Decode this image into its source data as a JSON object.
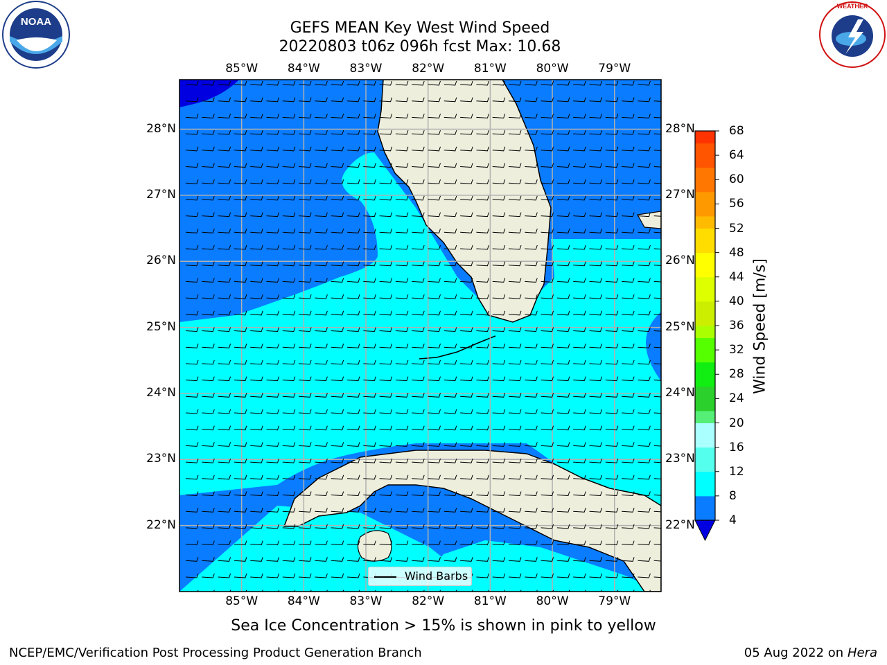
{
  "title": {
    "line1": "GEFS MEAN Key West Wind Speed",
    "line2": "20220803 t06z 096h fcst   Max: 10.68"
  },
  "axes": {
    "lon_labels": [
      "85°W",
      "84°W",
      "83°W",
      "82°W",
      "81°W",
      "80°W",
      "79°W"
    ],
    "lat_labels": [
      "28°N",
      "27°N",
      "26°N",
      "25°N",
      "24°N",
      "23°N",
      "22°N"
    ],
    "lon_range": [
      -86.0,
      -78.25
    ],
    "lat_range": [
      21.0,
      28.75
    ],
    "gridlines": true
  },
  "colorbar": {
    "label": "Wind Speed [m/s]",
    "ticks": [
      "68",
      "64",
      "60",
      "56",
      "52",
      "48",
      "44",
      "40",
      "36",
      "32",
      "28",
      "24",
      "20",
      "16",
      "12",
      "8",
      "4"
    ],
    "colors": [
      "#0000e0",
      "#0a7cff",
      "#00ffff",
      "#55ffee",
      "#aaffff",
      "#55ee77",
      "#2cd02c",
      "#11ee11",
      "#55ff00",
      "#aaff00",
      "#ccee00",
      "#ddff00",
      "#ffff00",
      "#ffdd00",
      "#ffbb00",
      "#ff9900",
      "#ff7700",
      "#ff5500",
      "#ff3300",
      "#ff0000"
    ],
    "extend": "min"
  },
  "colors": {
    "land": "#eeeedd",
    "slow": "#0a7cff",
    "fast": "#00ffff",
    "darkest": "#0000e0",
    "grid": "#b0b0b0"
  },
  "legend": {
    "label": "Wind Barbs"
  },
  "caption": "Sea Ice Concentration > 15% is shown in pink to yellow",
  "footer": {
    "left": "NCEP/EMC/Verification Post Processing Product Generation Branch",
    "right_date": "05 Aug 2022 on",
    "right_host": "Hera"
  },
  "logos": {
    "left": {
      "name": "noaa-logo",
      "text": "NOAA",
      "ring_text": "NATIONAL OCEANIC AND ATMOSPHERIC ADMINISTRATION · U.S. DEPARTMENT OF COMMERCE"
    },
    "right": {
      "name": "nws-logo",
      "ring_text": "NATIONAL WEATHER SERVICE"
    }
  }
}
